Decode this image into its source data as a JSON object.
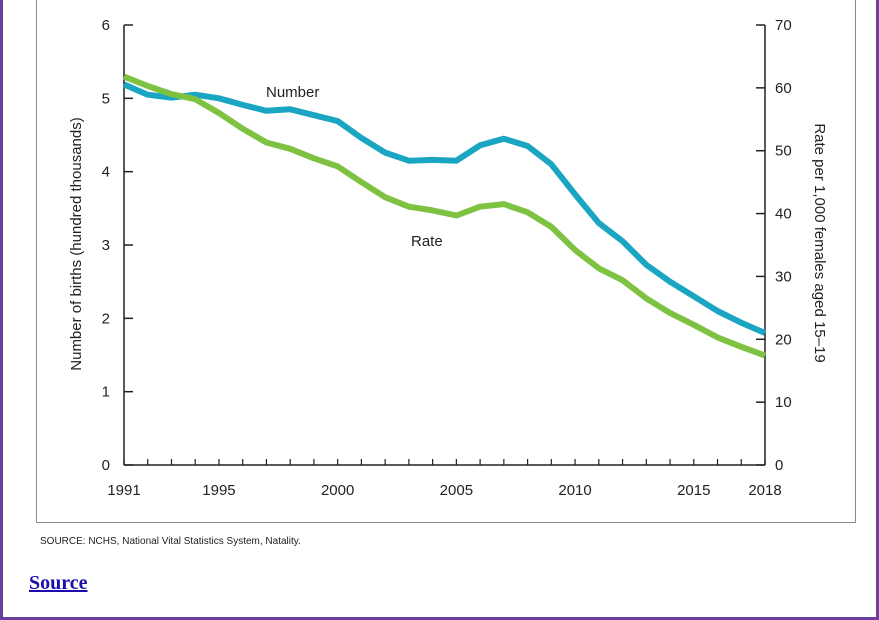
{
  "chart_data": {
    "type": "line",
    "x": [
      1991,
      1992,
      1993,
      1994,
      1995,
      1996,
      1997,
      1998,
      1999,
      2000,
      2001,
      2002,
      2003,
      2004,
      2005,
      2006,
      2007,
      2008,
      2009,
      2010,
      2011,
      2012,
      2013,
      2014,
      2015,
      2016,
      2017,
      2018
    ],
    "xlim": [
      1991,
      2018
    ],
    "x_tick_labels": [
      "1991",
      "1995",
      "2000",
      "2005",
      "2010",
      "2015",
      "2018"
    ],
    "x_tick_values": [
      1991,
      1995,
      2000,
      2005,
      2010,
      2015,
      2018
    ],
    "y_left": {
      "label": "Number of births (hundred thousands)",
      "lim": [
        0,
        6
      ],
      "ticks": [
        "0",
        "1",
        "2",
        "3",
        "4",
        "5",
        "6"
      ]
    },
    "y_right": {
      "label": "Rate per 1,000 females aged 15–19",
      "lim": [
        0,
        70
      ],
      "ticks": [
        "0",
        "10",
        "20",
        "30",
        "40",
        "50",
        "60",
        "70"
      ]
    },
    "series": [
      {
        "name": "Number",
        "axis": "left",
        "color": "#1aa6c2",
        "values": [
          5.19,
          5.05,
          5.01,
          5.05,
          5.0,
          4.91,
          4.83,
          4.85,
          4.77,
          4.69,
          4.46,
          4.26,
          4.15,
          4.16,
          4.15,
          4.36,
          4.45,
          4.35,
          4.1,
          3.69,
          3.3,
          3.05,
          2.73,
          2.5,
          2.3,
          2.1,
          1.94,
          1.8
        ]
      },
      {
        "name": "Rate",
        "axis": "right",
        "color": "#7ec242",
        "values": [
          61.8,
          60.3,
          59.0,
          58.2,
          56.0,
          53.5,
          51.3,
          50.3,
          48.8,
          47.5,
          45.0,
          42.6,
          41.1,
          40.5,
          39.7,
          41.1,
          41.5,
          40.2,
          37.9,
          34.2,
          31.3,
          29.4,
          26.5,
          24.2,
          22.3,
          20.3,
          18.8,
          17.4
        ]
      }
    ],
    "grid": false,
    "legend": "inline"
  },
  "source_note": "SOURCE: NCHS, National Vital Statistics System, Natality.",
  "source_link": "Source"
}
